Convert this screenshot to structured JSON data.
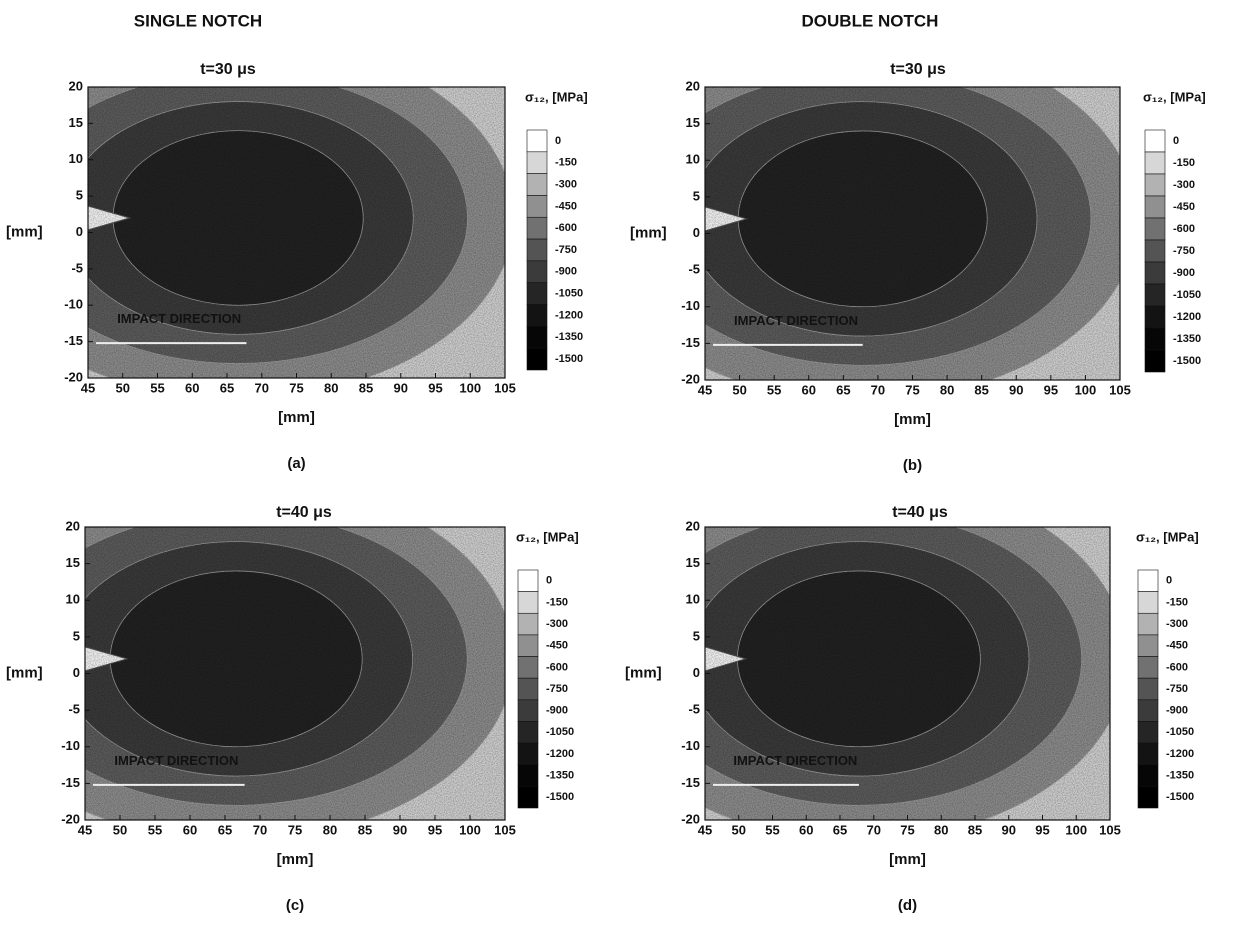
{
  "column_titles": [
    "SINGLE NOTCH",
    "DOUBLE NOTCH"
  ],
  "chart_data": [
    {
      "type": "contour",
      "title": "t=30 μs",
      "panel_label": "(a)",
      "x_label": "[mm]",
      "y_label": "[mm]",
      "xlim": [
        45,
        105
      ],
      "xticks": [
        45,
        50,
        55,
        60,
        65,
        70,
        75,
        80,
        85,
        90,
        95,
        100,
        105
      ],
      "ylim": [
        -20,
        20
      ],
      "yticks": [
        20,
        15,
        10,
        5,
        0,
        -5,
        -10,
        -15,
        -20
      ],
      "colorbar_title": "σ₁₂, [MPa]",
      "colorbar_levels": [
        0,
        -150,
        -300,
        -450,
        -600,
        -750,
        -900,
        -1050,
        -1200,
        -1350,
        -1500
      ],
      "annotation": "IMPACT DIRECTION"
    },
    {
      "type": "contour",
      "title": "t=30 μs",
      "panel_label": "(b)",
      "x_label": "[mm]",
      "y_label": "[mm]",
      "xlim": [
        45,
        105
      ],
      "xticks": [
        45,
        50,
        55,
        60,
        65,
        70,
        75,
        80,
        85,
        90,
        95,
        100,
        105
      ],
      "ylim": [
        -20,
        20
      ],
      "yticks": [
        20,
        15,
        10,
        5,
        0,
        -5,
        -10,
        -15,
        -20
      ],
      "colorbar_title": "σ₁₂, [MPa]",
      "colorbar_levels": [
        0,
        -150,
        -300,
        -450,
        -600,
        -750,
        -900,
        -1050,
        -1200,
        -1350,
        -1500
      ],
      "annotation": "IMPACT DIRECTION"
    },
    {
      "type": "contour",
      "title": "t=40 μs",
      "panel_label": "(c)",
      "x_label": "[mm]",
      "y_label": "[mm]",
      "xlim": [
        45,
        105
      ],
      "xticks": [
        45,
        50,
        55,
        60,
        65,
        70,
        75,
        80,
        85,
        90,
        95,
        100,
        105
      ],
      "ylim": [
        -20,
        20
      ],
      "yticks": [
        20,
        15,
        10,
        5,
        0,
        -5,
        -10,
        -15,
        -20
      ],
      "colorbar_title": "σ₁₂, [MPa]",
      "colorbar_levels": [
        0,
        -150,
        -300,
        -450,
        -600,
        -750,
        -900,
        -1050,
        -1200,
        -1350,
        -1500
      ],
      "annotation": "IMPACT DIRECTION"
    },
    {
      "type": "contour",
      "title": "t=40 μs",
      "panel_label": "(d)",
      "x_label": "[mm]",
      "y_label": "[mm]",
      "xlim": [
        45,
        105
      ],
      "xticks": [
        45,
        50,
        55,
        60,
        65,
        70,
        75,
        80,
        85,
        90,
        95,
        100,
        105
      ],
      "ylim": [
        -20,
        20
      ],
      "yticks": [
        20,
        15,
        10,
        5,
        0,
        -5,
        -10,
        -15,
        -20
      ],
      "colorbar_title": "σ₁₂, [MPa]",
      "colorbar_levels": [
        0,
        -150,
        -300,
        -450,
        -600,
        -750,
        -900,
        -1050,
        -1200,
        -1350,
        -1500
      ],
      "annotation": "IMPACT DIRECTION"
    }
  ]
}
